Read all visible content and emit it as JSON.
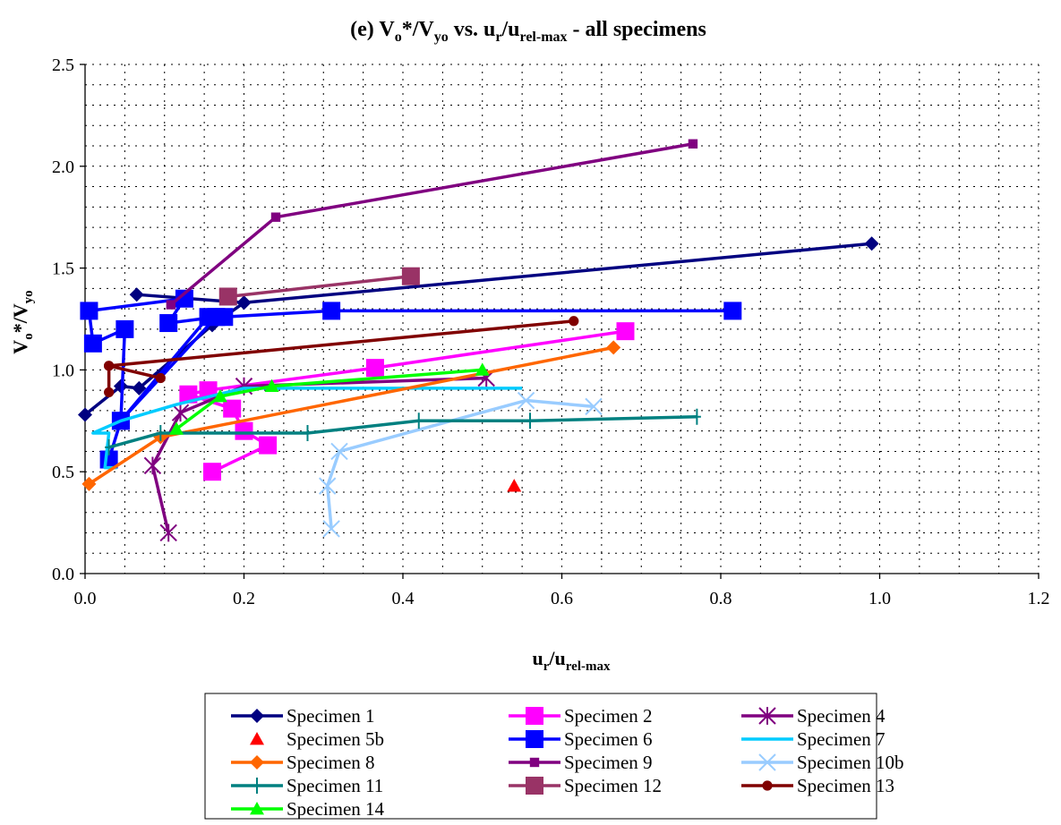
{
  "chart_data": {
    "type": "line",
    "title": {
      "main": "(e) V",
      "s1": "o",
      "mid": "*/V",
      "s2": "yo",
      "tail": " vs. u",
      "s3": "r",
      "slash": "/u",
      "s4": "rel-max",
      "end": " - all specimens"
    },
    "xlabel": {
      "main": "u",
      "s1": "r",
      "slash": "/u",
      "s2": "rel-max"
    },
    "ylabel": {
      "main": "V",
      "s1": "o",
      "mid": "*/V",
      "s2": "yo"
    },
    "xlim": [
      0,
      1.2
    ],
    "ylim": [
      0,
      2.5
    ],
    "xticks": [
      "0.0",
      "0.2",
      "0.4",
      "0.6",
      "0.8",
      "1.0",
      "1.2"
    ],
    "yticks": [
      "0.0",
      "0.5",
      "1.0",
      "1.5",
      "2.0",
      "2.5"
    ],
    "grid": "dotted",
    "legend_position": "bottom",
    "series": [
      {
        "name": "Specimen 1",
        "color": "#000080",
        "marker": "diamond",
        "line": true,
        "points": [
          [
            0.0,
            0.78
          ],
          [
            0.045,
            0.92
          ],
          [
            0.068,
            0.91
          ],
          [
            0.16,
            1.22
          ],
          [
            0.2,
            1.33
          ],
          [
            0.065,
            1.37
          ],
          [
            0.2,
            1.33
          ],
          [
            0.99,
            1.62
          ]
        ]
      },
      {
        "name": "Specimen 2",
        "color": "#ff00ff",
        "marker": "square",
        "line": true,
        "points": [
          [
            0.16,
            0.5
          ],
          [
            0.23,
            0.63
          ],
          [
            0.2,
            0.7
          ],
          [
            0.185,
            0.81
          ],
          [
            0.13,
            0.88
          ],
          [
            0.155,
            0.9
          ],
          [
            0.365,
            1.01
          ],
          [
            0.68,
            1.19
          ]
        ]
      },
      {
        "name": "Specimen 4",
        "color": "#800080",
        "marker": "star",
        "line": true,
        "points": [
          [
            0.105,
            0.2
          ],
          [
            0.085,
            0.53
          ],
          [
            0.12,
            0.79
          ],
          [
            0.2,
            0.92
          ],
          [
            0.505,
            0.96
          ]
        ]
      },
      {
        "name": "Specimen 5b",
        "color": "#ff0000",
        "marker": "triangle",
        "line": false,
        "points": [
          [
            0.54,
            0.43
          ]
        ]
      },
      {
        "name": "Specimen 6",
        "color": "#0000ff",
        "marker": "square",
        "line": true,
        "points": [
          [
            0.03,
            0.56
          ],
          [
            0.045,
            0.75
          ],
          [
            0.05,
            1.2
          ],
          [
            0.01,
            1.13
          ],
          [
            0.005,
            1.29
          ],
          [
            0.125,
            1.35
          ],
          [
            0.105,
            1.23
          ],
          [
            0.165,
            1.26
          ],
          [
            0.045,
            0.75
          ],
          [
            0.155,
            1.26
          ],
          [
            0.175,
            1.26
          ],
          [
            0.31,
            1.29
          ],
          [
            0.815,
            1.29
          ]
        ]
      },
      {
        "name": "Specimen 7",
        "color": "#00ccff",
        "marker": "none",
        "line": true,
        "points": [
          [
            0.04,
            0.52
          ],
          [
            0.025,
            0.52
          ],
          [
            0.03,
            0.69
          ],
          [
            0.01,
            0.69
          ],
          [
            0.045,
            0.75
          ],
          [
            0.115,
            0.83
          ],
          [
            0.2,
            0.91
          ],
          [
            0.55,
            0.91
          ]
        ]
      },
      {
        "name": "Specimen 8",
        "color": "#ff6600",
        "marker": "diamond",
        "line": true,
        "points": [
          [
            0.005,
            0.44
          ],
          [
            0.095,
            0.67
          ],
          [
            0.665,
            1.11
          ]
        ]
      },
      {
        "name": "Specimen 9",
        "color": "#800080",
        "marker": "smallsquare",
        "line": true,
        "points": [
          [
            0.108,
            1.32
          ],
          [
            0.24,
            1.75
          ],
          [
            0.765,
            2.11
          ]
        ]
      },
      {
        "name": "Specimen 10b",
        "color": "#99ccff",
        "marker": "x",
        "line": true,
        "points": [
          [
            0.31,
            0.22
          ],
          [
            0.305,
            0.43
          ],
          [
            0.32,
            0.6
          ],
          [
            0.555,
            0.85
          ],
          [
            0.64,
            0.82
          ]
        ]
      },
      {
        "name": "Specimen 11",
        "color": "#008080",
        "marker": "plus",
        "line": true,
        "points": [
          [
            0.03,
            0.62
          ],
          [
            0.095,
            0.69
          ],
          [
            0.28,
            0.69
          ],
          [
            0.42,
            0.75
          ],
          [
            0.56,
            0.75
          ],
          [
            0.77,
            0.77
          ]
        ]
      },
      {
        "name": "Specimen 12",
        "color": "#993366",
        "marker": "square",
        "line": true,
        "points": [
          [
            0.18,
            1.36
          ],
          [
            0.41,
            1.46
          ]
        ]
      },
      {
        "name": "Specimen 13",
        "color": "#800000",
        "marker": "circle",
        "line": true,
        "points": [
          [
            0.03,
            0.89
          ],
          [
            0.03,
            1.02
          ],
          [
            0.095,
            0.96
          ],
          [
            0.03,
            1.02
          ],
          [
            0.615,
            1.24
          ]
        ]
      },
      {
        "name": "Specimen 14",
        "color": "#00ff00",
        "marker": "triangle",
        "line": true,
        "points": [
          [
            0.115,
            0.71
          ],
          [
            0.17,
            0.87
          ],
          [
            0.235,
            0.92
          ],
          [
            0.5,
            1.0
          ]
        ]
      }
    ]
  }
}
